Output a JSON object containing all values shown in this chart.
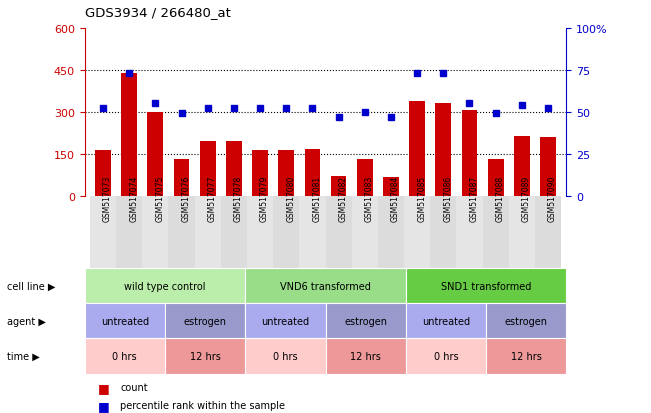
{
  "title": "GDS3934 / 266480_at",
  "samples": [
    "GSM517073",
    "GSM517074",
    "GSM517075",
    "GSM517076",
    "GSM517077",
    "GSM517078",
    "GSM517079",
    "GSM517080",
    "GSM517081",
    "GSM517082",
    "GSM517083",
    "GSM517084",
    "GSM517085",
    "GSM517086",
    "GSM517087",
    "GSM517088",
    "GSM517089",
    "GSM517090"
  ],
  "counts": [
    165,
    440,
    300,
    130,
    195,
    195,
    165,
    165,
    168,
    70,
    130,
    65,
    340,
    330,
    305,
    130,
    215,
    210
  ],
  "percentiles": [
    52,
    73,
    55,
    49,
    52,
    52,
    52,
    52,
    52,
    47,
    50,
    47,
    73,
    73,
    55,
    49,
    54,
    52
  ],
  "left_ylim": [
    0,
    600
  ],
  "right_ylim": [
    0,
    100
  ],
  "left_yticks": [
    0,
    150,
    300,
    450,
    600
  ],
  "right_yticks": [
    0,
    25,
    50,
    75,
    100
  ],
  "right_yticklabels": [
    "0",
    "25",
    "50",
    "75",
    "100%"
  ],
  "hlines": [
    150,
    300,
    450
  ],
  "bar_color": "#cc0000",
  "dot_color": "#0000cc",
  "cell_line_groups": [
    {
      "text": "wild type control",
      "start": 0,
      "end": 6,
      "color": "#bbeeaa"
    },
    {
      "text": "VND6 transformed",
      "start": 6,
      "end": 12,
      "color": "#99dd88"
    },
    {
      "text": "SND1 transformed",
      "start": 12,
      "end": 18,
      "color": "#66cc44"
    }
  ],
  "agent_groups": [
    {
      "text": "untreated",
      "start": 0,
      "end": 3,
      "color": "#aaaaee"
    },
    {
      "text": "estrogen",
      "start": 3,
      "end": 6,
      "color": "#9999cc"
    },
    {
      "text": "untreated",
      "start": 6,
      "end": 9,
      "color": "#aaaaee"
    },
    {
      "text": "estrogen",
      "start": 9,
      "end": 12,
      "color": "#9999cc"
    },
    {
      "text": "untreated",
      "start": 12,
      "end": 15,
      "color": "#aaaaee"
    },
    {
      "text": "estrogen",
      "start": 15,
      "end": 18,
      "color": "#9999cc"
    }
  ],
  "time_groups": [
    {
      "text": "0 hrs",
      "start": 0,
      "end": 3,
      "color": "#ffcccc"
    },
    {
      "text": "12 hrs",
      "start": 3,
      "end": 6,
      "color": "#ee9999"
    },
    {
      "text": "0 hrs",
      "start": 6,
      "end": 9,
      "color": "#ffcccc"
    },
    {
      "text": "12 hrs",
      "start": 9,
      "end": 12,
      "color": "#ee9999"
    },
    {
      "text": "0 hrs",
      "start": 12,
      "end": 15,
      "color": "#ffcccc"
    },
    {
      "text": "12 hrs",
      "start": 15,
      "end": 18,
      "color": "#ee9999"
    }
  ],
  "left_axis_color": "#cc0000",
  "right_axis_color": "#0000cc",
  "xlabel_bg": "#cccccc",
  "bg_color": "#ffffff",
  "n_samples": 18
}
